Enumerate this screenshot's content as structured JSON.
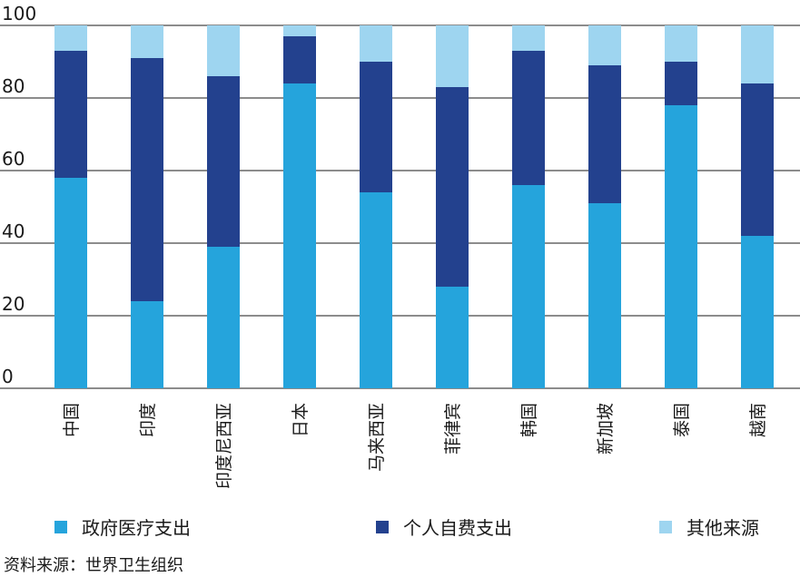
{
  "chart_data": {
    "type": "bar",
    "stacked": true,
    "title": "",
    "xlabel": "",
    "ylabel": "",
    "ylim": [
      0,
      100
    ],
    "yticks": [
      0,
      20,
      40,
      60,
      80,
      100
    ],
    "grid": true,
    "legend_position": "bottom",
    "categories": [
      "中国",
      "印度",
      "印度尼西亚",
      "日本",
      "马来西亚",
      "菲律宾",
      "韩国",
      "新加坡",
      "泰国",
      "越南"
    ],
    "series": [
      {
        "name": "政府医疗支出",
        "color": "#25a4dc",
        "values": [
          58,
          24,
          39,
          84,
          54,
          28,
          56,
          51,
          78,
          42
        ]
      },
      {
        "name": "个人自费支出",
        "color": "#23418e",
        "values": [
          35,
          67,
          47,
          13,
          36,
          55,
          37,
          38,
          12,
          42
        ]
      },
      {
        "name": "其他来源",
        "color": "#9ed5f0",
        "values": [
          7,
          9,
          14,
          3,
          10,
          17,
          7,
          11,
          10,
          16
        ]
      }
    ]
  },
  "source": "资料来源：世界卫生组织"
}
